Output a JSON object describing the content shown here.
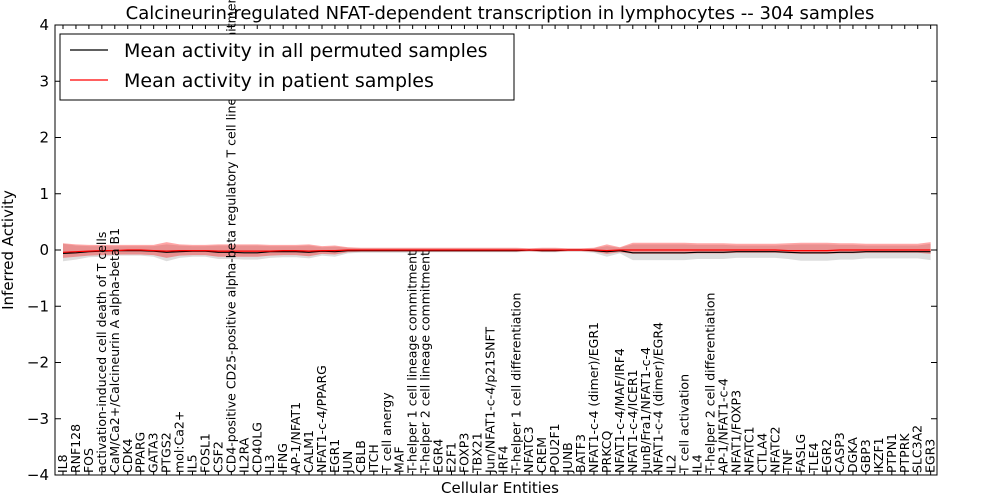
{
  "chart_data": {
    "type": "line",
    "title": "Calcineurin-regulated NFAT-dependent transcription in lymphocytes -- 304 samples",
    "xlabel": "Cellular Entities",
    "ylabel": "Inferred Activity",
    "ylim": [
      -4,
      4
    ],
    "yticks": [
      -4,
      -3,
      -2,
      -1,
      0,
      1,
      2,
      3,
      4
    ],
    "ytick_labels": [
      "−4",
      "−3",
      "−2",
      "−1",
      "0",
      "1",
      "2",
      "3",
      "4"
    ],
    "legend_position": "top-left",
    "categories": [
      "IL8",
      "RNF128",
      "FOS",
      "activation-induced cell death of T cells",
      "CaM/Ca2+/Calcineurin A alpha-beta B1",
      "CDK4",
      "PPARG",
      "GATA3",
      "PTGS2",
      "mol:Ca2+",
      "IL5",
      "FOSL1",
      "CSF2",
      "CD4-positive CD25-positive alpha-beta regulatory T cell lineage commitment",
      "IL2RA",
      "CD40LG",
      "IL3",
      "IFNG",
      "AP-1/NFAT1",
      "CALM1",
      "NFAT1-c-4/PPARG",
      "EGR1",
      "JUN",
      "CBLB",
      "ITCH",
      "T cell anergy",
      "MAF",
      "T-helper 1 cell lineage commitment",
      "T-helper 2 cell lineage commitment",
      "EGR4",
      "E2F1",
      "FOXP3",
      "TBX21",
      "Jun/NFAT1-c-4/p21SNFT",
      "IRF4",
      "T-helper 1 cell differentiation",
      "NFATC3",
      "CREM",
      "POU2F1",
      "JUNB",
      "BATF3",
      "NFAT1-c-4 (dimer)/EGR1",
      "PRKCQ",
      "NFAT1-c-4/MAF/IRF4",
      "NFAT1-c-4/ICER1",
      "JunB/Fra1/NFAT1-c-4",
      "NFAT1-c-4 (dimer)/EGR4",
      "IL2",
      "T cell activation",
      "IL4",
      "T-helper 2 cell differentiation",
      "AP-1/NFAT1-c-4",
      "NFAT1/FOXP3",
      "NFATC1",
      "CTLA4",
      "NFATC2",
      "TNF",
      "FASLG",
      "TLE4",
      "EGR2",
      "CASP3",
      "DGKA",
      "GBP3",
      "IKZF1",
      "PTPN1",
      "PTPRK",
      "SLC3A2",
      "EGR3"
    ],
    "series": [
      {
        "name": "Mean activity in all permuted samples",
        "color": "#000000",
        "values": [
          -0.06,
          -0.05,
          -0.03,
          -0.02,
          -0.01,
          -0.01,
          -0.01,
          -0.02,
          -0.04,
          -0.03,
          -0.02,
          -0.02,
          -0.04,
          -0.04,
          -0.05,
          -0.05,
          -0.03,
          -0.03,
          -0.03,
          -0.04,
          -0.02,
          -0.03,
          -0.01,
          -0.01,
          -0.01,
          -0.01,
          -0.01,
          -0.01,
          -0.01,
          -0.01,
          -0.01,
          -0.01,
          -0.01,
          -0.01,
          -0.01,
          -0.01,
          0.0,
          -0.01,
          -0.01,
          0.0,
          0.0,
          -0.01,
          -0.03,
          -0.01,
          -0.05,
          -0.05,
          -0.05,
          -0.05,
          -0.05,
          -0.04,
          -0.04,
          -0.04,
          -0.03,
          -0.03,
          -0.03,
          -0.03,
          -0.04,
          -0.05,
          -0.05,
          -0.05,
          -0.04,
          -0.04,
          -0.03,
          -0.03,
          -0.03,
          -0.03,
          -0.03,
          -0.03
        ],
        "band_low": [
          -0.2,
          -0.17,
          -0.13,
          -0.12,
          -0.1,
          -0.1,
          -0.1,
          -0.12,
          -0.2,
          -0.14,
          -0.12,
          -0.12,
          -0.16,
          -0.16,
          -0.17,
          -0.17,
          -0.14,
          -0.13,
          -0.13,
          -0.15,
          -0.1,
          -0.12,
          -0.06,
          -0.05,
          -0.05,
          -0.05,
          -0.05,
          -0.05,
          -0.04,
          -0.04,
          -0.04,
          -0.04,
          -0.04,
          -0.04,
          -0.04,
          -0.04,
          -0.03,
          -0.04,
          -0.04,
          -0.03,
          -0.03,
          -0.05,
          -0.12,
          -0.06,
          -0.18,
          -0.18,
          -0.18,
          -0.18,
          -0.18,
          -0.16,
          -0.16,
          -0.16,
          -0.14,
          -0.14,
          -0.14,
          -0.14,
          -0.16,
          -0.19,
          -0.19,
          -0.19,
          -0.17,
          -0.17,
          -0.15,
          -0.15,
          -0.15,
          -0.15,
          -0.15,
          -0.18
        ],
        "band_high": [
          0.11,
          0.08,
          0.07,
          0.07,
          0.07,
          0.07,
          0.07,
          0.07,
          0.1,
          0.08,
          0.07,
          0.07,
          0.08,
          0.08,
          0.08,
          0.08,
          0.07,
          0.07,
          0.07,
          0.08,
          0.05,
          0.06,
          0.04,
          0.03,
          0.03,
          0.03,
          0.03,
          0.03,
          0.03,
          0.03,
          0.03,
          0.03,
          0.03,
          0.03,
          0.03,
          0.03,
          0.02,
          0.03,
          0.03,
          0.02,
          0.02,
          0.03,
          0.07,
          0.04,
          0.1,
          0.1,
          0.1,
          0.1,
          0.1,
          0.09,
          0.09,
          0.09,
          0.08,
          0.08,
          0.08,
          0.08,
          0.09,
          0.1,
          0.1,
          0.1,
          0.09,
          0.09,
          0.08,
          0.08,
          0.08,
          0.08,
          0.08,
          0.11
        ]
      },
      {
        "name": "Mean activity in patient samples",
        "color": "#ff0000",
        "values": [
          -0.04,
          -0.03,
          -0.02,
          -0.01,
          -0.01,
          0.0,
          0.0,
          -0.01,
          -0.02,
          -0.01,
          -0.01,
          -0.01,
          -0.02,
          -0.02,
          -0.02,
          -0.02,
          -0.02,
          -0.01,
          -0.01,
          -0.02,
          -0.01,
          -0.01,
          0.0,
          0.0,
          0.0,
          0.0,
          0.0,
          0.0,
          0.0,
          0.0,
          0.0,
          0.0,
          0.0,
          0.0,
          0.0,
          0.0,
          0.0,
          0.0,
          0.0,
          0.0,
          0.0,
          0.0,
          -0.01,
          0.0,
          0.0,
          0.0,
          0.0,
          0.0,
          0.0,
          0.0,
          0.0,
          0.0,
          0.0,
          0.0,
          0.0,
          0.0,
          -0.01,
          -0.01,
          -0.01,
          -0.01,
          0.0,
          0.0,
          0.0,
          0.0,
          0.0,
          0.0,
          0.0,
          0.0
        ],
        "band_low": [
          -0.14,
          -0.12,
          -0.1,
          -0.09,
          -0.08,
          -0.08,
          -0.08,
          -0.09,
          -0.14,
          -0.1,
          -0.09,
          -0.09,
          -0.12,
          -0.12,
          -0.12,
          -0.12,
          -0.1,
          -0.09,
          -0.09,
          -0.11,
          -0.07,
          -0.08,
          -0.04,
          -0.03,
          -0.03,
          -0.03,
          -0.03,
          -0.03,
          -0.03,
          -0.03,
          -0.03,
          -0.03,
          -0.03,
          -0.03,
          -0.03,
          -0.03,
          -0.02,
          -0.03,
          -0.03,
          -0.02,
          -0.02,
          -0.03,
          -0.07,
          -0.04,
          -0.07,
          -0.07,
          -0.07,
          -0.07,
          -0.07,
          -0.06,
          -0.06,
          -0.06,
          -0.05,
          -0.05,
          -0.05,
          -0.05,
          -0.06,
          -0.07,
          -0.07,
          -0.07,
          -0.06,
          -0.06,
          -0.05,
          -0.05,
          -0.05,
          -0.05,
          -0.05,
          -0.07
        ],
        "band_high": [
          0.12,
          0.1,
          0.09,
          0.09,
          0.09,
          0.09,
          0.09,
          0.09,
          0.14,
          0.1,
          0.09,
          0.09,
          0.1,
          0.1,
          0.1,
          0.1,
          0.09,
          0.09,
          0.09,
          0.1,
          0.07,
          0.08,
          0.05,
          0.04,
          0.04,
          0.04,
          0.04,
          0.04,
          0.04,
          0.04,
          0.04,
          0.04,
          0.04,
          0.04,
          0.04,
          0.04,
          0.03,
          0.04,
          0.04,
          0.03,
          0.03,
          0.04,
          0.1,
          0.05,
          0.13,
          0.13,
          0.13,
          0.13,
          0.13,
          0.12,
          0.12,
          0.12,
          0.11,
          0.11,
          0.11,
          0.11,
          0.12,
          0.13,
          0.13,
          0.13,
          0.12,
          0.12,
          0.11,
          0.11,
          0.11,
          0.11,
          0.11,
          0.14
        ]
      }
    ]
  }
}
